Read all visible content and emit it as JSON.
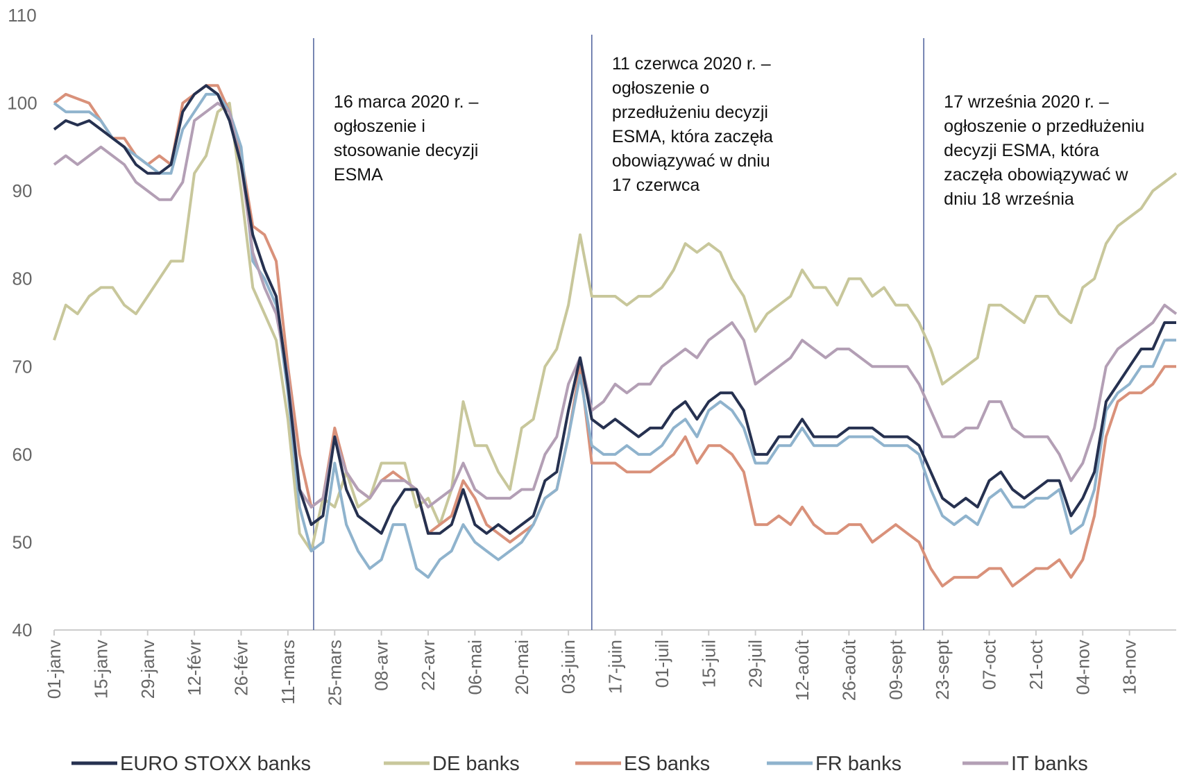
{
  "chart_data": {
    "type": "line",
    "categories": [
      "01-janv",
      null,
      null,
      null,
      "15-janv",
      null,
      null,
      null,
      "29-janv",
      null,
      null,
      null,
      "12-févr",
      null,
      null,
      null,
      "26-févr",
      null,
      null,
      null,
      "11-mars",
      null,
      null,
      null,
      "25-mars",
      null,
      null,
      null,
      "08-avr",
      null,
      null,
      null,
      "22-avr",
      null,
      null,
      null,
      "06-mai",
      null,
      null,
      null,
      "20-mai",
      null,
      null,
      null,
      "03-juin",
      null,
      null,
      null,
      "17-juin",
      null,
      null,
      null,
      "01-juil",
      null,
      null,
      null,
      "15-juil",
      null,
      null,
      null,
      "29-juil",
      null,
      null,
      null,
      "12-août",
      null,
      null,
      null,
      "26-août",
      null,
      null,
      null,
      "09-sept",
      null,
      null,
      null,
      "23-sept",
      null,
      null,
      null,
      "07-oct",
      null,
      null,
      null,
      "21-oct",
      null,
      null,
      null,
      "04-nov",
      null,
      null,
      null,
      "18-nov",
      null,
      null,
      null,
      null
    ],
    "ylim": [
      40,
      110
    ],
    "yticks": [
      40,
      50,
      60,
      70,
      80,
      90,
      100,
      110
    ],
    "grid": false,
    "series": [
      {
        "name": "EURO STOXX banks",
        "color": "#263150",
        "values": [
          97,
          98,
          97.5,
          98,
          97,
          96,
          95,
          93,
          92,
          92,
          93,
          99,
          101,
          102,
          101,
          98,
          93,
          85,
          81,
          78,
          68,
          56,
          52,
          53,
          62,
          56,
          53,
          52,
          51,
          54,
          56,
          56,
          51,
          51,
          52,
          56,
          52,
          51,
          52,
          51,
          52,
          53,
          57,
          58,
          65,
          71,
          64,
          63,
          64,
          63,
          62,
          63,
          63,
          65,
          66,
          64,
          66,
          67,
          67,
          65,
          60,
          60,
          62,
          62,
          64,
          62,
          62,
          62,
          63,
          63,
          63,
          62,
          62,
          62,
          61,
          58,
          55,
          54,
          55,
          54,
          57,
          58,
          56,
          55,
          56,
          57,
          57,
          53,
          55,
          58,
          66,
          68,
          70,
          72,
          72,
          75,
          75
        ]
      },
      {
        "name": "DE banks",
        "color": "#c8c79b",
        "values": [
          73,
          77,
          76,
          78,
          79,
          79,
          77,
          76,
          78,
          80,
          82,
          82,
          92,
          94,
          99,
          100,
          90,
          79,
          76,
          73,
          64,
          51,
          49,
          55,
          54,
          58,
          54,
          55,
          59,
          59,
          59,
          54,
          55,
          52,
          56,
          66,
          61,
          61,
          58,
          56,
          63,
          64,
          70,
          72,
          77,
          85,
          78,
          78,
          78,
          77,
          78,
          78,
          79,
          81,
          84,
          83,
          84,
          83,
          80,
          78,
          74,
          76,
          77,
          78,
          81,
          79,
          79,
          77,
          80,
          80,
          78,
          79,
          77,
          77,
          75,
          72,
          68,
          69,
          70,
          71,
          77,
          77,
          76,
          75,
          78,
          78,
          76,
          75,
          79,
          80,
          84,
          86,
          87,
          88,
          90,
          91,
          92
        ]
      },
      {
        "name": "ES banks",
        "color": "#d9917a",
        "values": [
          100,
          101,
          100.5,
          100,
          98,
          96,
          96,
          94,
          93,
          94,
          93,
          100,
          101,
          102,
          102,
          99,
          94,
          86,
          85,
          82,
          70,
          60,
          54,
          55,
          63,
          58,
          56,
          55,
          57,
          58,
          57,
          56,
          51,
          52,
          53,
          57,
          55,
          52,
          51,
          50,
          51,
          52,
          55,
          56,
          62,
          70,
          59,
          59,
          59,
          58,
          58,
          58,
          59,
          60,
          62,
          59,
          61,
          61,
          60,
          58,
          52,
          52,
          53,
          52,
          54,
          52,
          51,
          51,
          52,
          52,
          50,
          51,
          52,
          51,
          50,
          47,
          45,
          46,
          46,
          46,
          47,
          47,
          45,
          46,
          47,
          47,
          48,
          46,
          48,
          53,
          62,
          66,
          67,
          67,
          68,
          70,
          70
        ]
      },
      {
        "name": "FR banks",
        "color": "#8fb3cd",
        "values": [
          100,
          99,
          99,
          99,
          98,
          96,
          95,
          94,
          93,
          92,
          92,
          97,
          99,
          101,
          101,
          99,
          95,
          82,
          80,
          77,
          67,
          54,
          49,
          50,
          59,
          52,
          49,
          47,
          48,
          52,
          52,
          47,
          46,
          48,
          49,
          52,
          50,
          49,
          48,
          49,
          50,
          52,
          55,
          56,
          62,
          69,
          61,
          60,
          60,
          61,
          60,
          60,
          61,
          63,
          64,
          62,
          65,
          66,
          65,
          63,
          59,
          59,
          61,
          61,
          63,
          61,
          61,
          61,
          62,
          62,
          62,
          61,
          61,
          61,
          60,
          56,
          53,
          52,
          53,
          52,
          55,
          56,
          54,
          54,
          55,
          55,
          56,
          51,
          52,
          56,
          65,
          67,
          68,
          70,
          70,
          73,
          73
        ]
      },
      {
        "name": "IT banks",
        "color": "#b39fb5",
        "values": [
          93,
          94,
          93,
          94,
          95,
          94,
          93,
          91,
          90,
          89,
          89,
          91,
          98,
          99,
          100,
          99,
          93,
          83,
          79,
          76,
          69,
          56,
          54,
          55,
          62,
          58,
          56,
          55,
          57,
          57,
          57,
          56,
          54,
          55,
          56,
          59,
          56,
          55,
          55,
          55,
          56,
          56,
          60,
          62,
          68,
          71,
          65,
          66,
          68,
          67,
          68,
          68,
          70,
          71,
          72,
          71,
          73,
          74,
          75,
          73,
          68,
          69,
          70,
          71,
          73,
          72,
          71,
          72,
          72,
          71,
          70,
          70,
          70,
          70,
          68,
          65,
          62,
          62,
          63,
          63,
          66,
          66,
          63,
          62,
          62,
          62,
          60,
          57,
          59,
          63,
          70,
          72,
          73,
          74,
          75,
          77,
          76
        ]
      }
    ],
    "annotations": [
      {
        "x": 22.2,
        "lines": [
          "16 marca 2020 r. –",
          "ogłoszenie i",
          "stosowanie decyzji",
          "ESMA"
        ]
      },
      {
        "x": 46.0,
        "lines": [
          "11 czerwca 2020 r. –",
          "ogłoszenie o",
          "przedłużeniu decyzji",
          "ESMA, która zaczęła",
          "obowiązywać w dniu",
          "17 czerwca"
        ]
      },
      {
        "x": 74.4,
        "lines": [
          "17 września 2020 r. –",
          "ogłoszenie o przedłużeniu",
          "decyzji ESMA, która",
          "zaczęła obowiązywać w",
          "dniu 18 września"
        ]
      }
    ]
  }
}
